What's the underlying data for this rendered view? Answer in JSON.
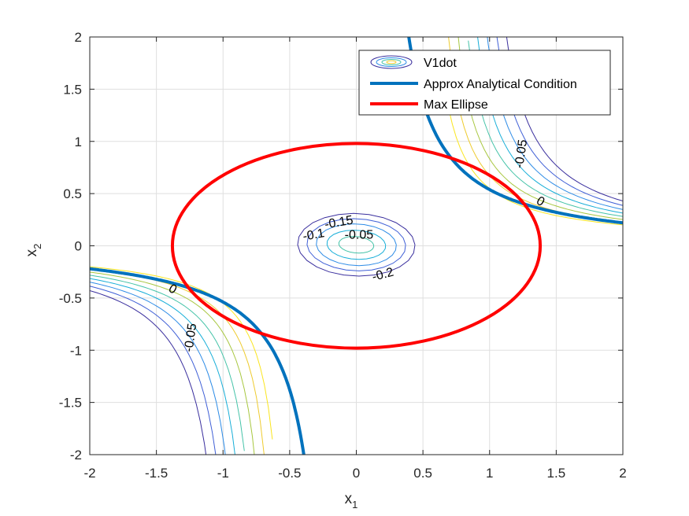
{
  "chart_data": {
    "type": "contour",
    "xlabel": "x",
    "xlabel_sub": "1",
    "ylabel": "x",
    "ylabel_sub": "2",
    "xlim": [
      -2,
      2
    ],
    "ylim": [
      -2,
      2
    ],
    "grid": true,
    "xticks": [
      -2,
      -1.5,
      -1,
      -0.5,
      0,
      0.5,
      1,
      1.5,
      2
    ],
    "yticks": [
      -2,
      -1.5,
      -1,
      -0.5,
      0,
      0.5,
      1,
      1.5,
      2
    ],
    "xtick_labels": [
      "-2",
      "-1.5",
      "-1",
      "-0.5",
      "0",
      "0.5",
      "1",
      "1.5",
      "2"
    ],
    "ytick_labels": [
      "-2",
      "-1.5",
      "-1",
      "-0.5",
      "0",
      "0.5",
      "1",
      "1.5",
      "2"
    ],
    "legend": {
      "position": "top-right",
      "entries": [
        "V1dot",
        "Approx Analytical Condition",
        "Max Ellipse"
      ]
    },
    "colors": {
      "analytical": "#0072bd",
      "ellipse": "#ff0000",
      "contour_levels": [
        "#3a2f9e",
        "#3f5fd6",
        "#2c8be6",
        "#17aed8",
        "#45c3a8",
        "#a8c740",
        "#eecb2f",
        "#fae51f"
      ],
      "axis": "#262626"
    },
    "contour_levels": [
      -0.2,
      -0.15,
      -0.1,
      -0.05,
      0
    ],
    "center_contours": [
      {
        "level": -0.2,
        "rx": 0.44,
        "ry": 0.3
      },
      {
        "level": -0.15,
        "rx": 0.37,
        "ry": 0.25
      },
      {
        "level": -0.1,
        "rx": 0.3,
        "ry": 0.2
      },
      {
        "level": -0.05,
        "rx": 0.22,
        "ry": 0.14
      },
      {
        "level": 0,
        "rx": 0.13,
        "ry": 0.08
      }
    ],
    "contour_labels": [
      {
        "text": "-0.15",
        "x": -0.13,
        "y": 0.22,
        "rot": -10
      },
      {
        "text": "-0.1",
        "x": -0.32,
        "y": 0.1,
        "rot": -10
      },
      {
        "text": "-0.05",
        "x": 0.02,
        "y": 0.1,
        "rot": 0
      },
      {
        "text": "-0.2",
        "x": 0.2,
        "y": -0.28,
        "rot": -15
      },
      {
        "text": "0",
        "x": 1.38,
        "y": 0.42,
        "rot": 30
      },
      {
        "text": "0",
        "x": -1.38,
        "y": -0.42,
        "rot": 30
      },
      {
        "text": "-0.05",
        "x": 1.24,
        "y": 0.88,
        "rot": -82
      },
      {
        "text": "-0.05",
        "x": -1.24,
        "y": -0.88,
        "rot": -82
      }
    ],
    "max_ellipse": {
      "cx": 0,
      "cy": 0,
      "a": 1.38,
      "b": 0.98
    },
    "analytical_condition": {
      "k": 0.5,
      "x0": 0.25,
      "x1": 2.0
    }
  }
}
